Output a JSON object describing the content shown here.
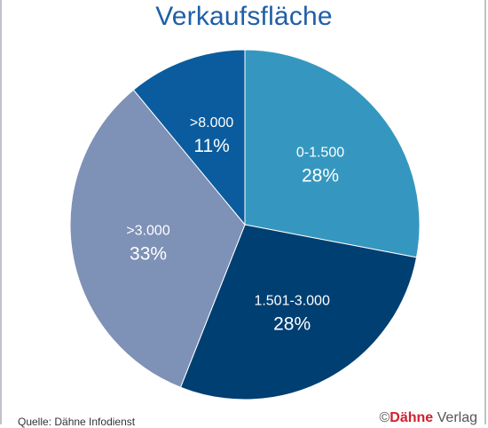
{
  "chart_data": {
    "type": "pie",
    "title": "Verkaufsfläche",
    "slices": [
      {
        "label": "0-1.500",
        "value": 28,
        "value_label": "28%",
        "color": "#3597bf"
      },
      {
        "label": "1.501-3.000",
        "value": 28,
        "value_label": "28%",
        "color": "#003f72"
      },
      {
        "label": ">3.000",
        "value": 33,
        "value_label": "33%",
        "color": "#7e91b6"
      },
      {
        "label": ">8.000",
        "value": 11,
        "value_label": "11%",
        "color": "#0a5c9e"
      }
    ],
    "legend": "none"
  },
  "footer": {
    "source": "Quelle: Dähne Infodienst",
    "copyright_symbol": "©",
    "brand_red": "Dähne",
    "brand_gray": " Verlag"
  }
}
